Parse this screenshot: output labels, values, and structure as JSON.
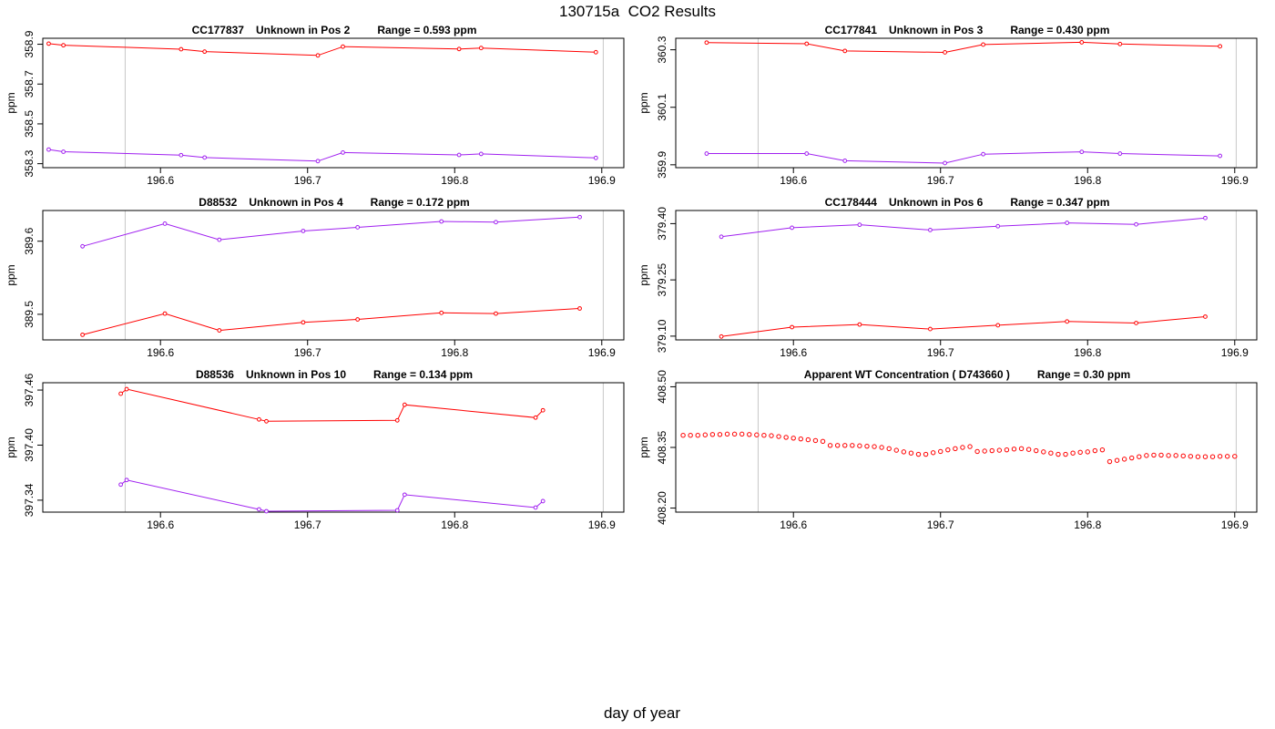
{
  "figure": {
    "title": "130715a  CO2 Results",
    "xlabel": "day of year"
  },
  "colors": {
    "red": "#ff0000",
    "purple": "#a020f0",
    "guide": "#c8c8c8"
  },
  "chart_data": [
    {
      "type": "line",
      "sample": "CC177837",
      "description": "Unknown in Pos 2",
      "range_text": "Range =  0.593 ppm",
      "ylabel": "ppm",
      "xlim": [
        196.52,
        196.915
      ],
      "ylim": [
        358.28,
        358.93
      ],
      "xticks": [
        196.6,
        196.7,
        196.8,
        196.9
      ],
      "yticks": [
        358.3,
        358.5,
        358.7,
        358.9
      ],
      "guides": [
        196.576,
        196.901
      ],
      "series": [
        {
          "name": "upper",
          "color": "red",
          "x": [
            196.524,
            196.534,
            196.614,
            196.63,
            196.707,
            196.724,
            196.803,
            196.818,
            196.896
          ],
          "y": [
            358.903,
            358.895,
            358.875,
            358.863,
            358.844,
            358.888,
            358.876,
            358.881,
            358.86
          ]
        },
        {
          "name": "lower",
          "color": "purple",
          "x": [
            196.524,
            196.534,
            196.614,
            196.63,
            196.707,
            196.724,
            196.803,
            196.818,
            196.896
          ],
          "y": [
            358.371,
            358.36,
            358.343,
            358.331,
            358.313,
            358.356,
            358.344,
            358.349,
            358.329
          ]
        }
      ]
    },
    {
      "type": "line",
      "sample": "CC177841",
      "description": "Unknown in Pos 3",
      "range_text": "Range =  0.430 ppm",
      "ylabel": "ppm",
      "xlim": [
        196.52,
        196.915
      ],
      "ylim": [
        359.89,
        360.34
      ],
      "xticks": [
        196.6,
        196.7,
        196.8,
        196.9
      ],
      "yticks": [
        359.9,
        360.1,
        360.3
      ],
      "guides": [
        196.576,
        196.901
      ],
      "series": [
        {
          "name": "upper",
          "color": "red",
          "x": [
            196.541,
            196.609,
            196.635,
            196.703,
            196.729,
            196.796,
            196.822,
            196.89
          ],
          "y": [
            360.325,
            360.321,
            360.296,
            360.291,
            360.318,
            360.326,
            360.32,
            360.312
          ]
        },
        {
          "name": "lower",
          "color": "purple",
          "x": [
            196.541,
            196.609,
            196.635,
            196.703,
            196.729,
            196.796,
            196.822,
            196.89
          ],
          "y": [
            359.939,
            359.939,
            359.914,
            359.906,
            359.937,
            359.945,
            359.939,
            359.931
          ]
        }
      ]
    },
    {
      "type": "line",
      "sample": "D88532",
      "description": "Unknown in Pos 4",
      "range_text": "Range =  0.172 ppm",
      "ylabel": "ppm",
      "xlim": [
        196.52,
        196.915
      ],
      "ylim": [
        389.465,
        389.642
      ],
      "xticks": [
        196.6,
        196.7,
        196.8,
        196.9
      ],
      "yticks": [
        389.5,
        389.6
      ],
      "guides": [
        196.576,
        196.901
      ],
      "series": [
        {
          "name": "upper",
          "color": "purple",
          "x": [
            196.547,
            196.603,
            196.64,
            196.697,
            196.734,
            196.791,
            196.828,
            196.885
          ],
          "y": [
            389.593,
            389.624,
            389.602,
            389.614,
            389.619,
            389.627,
            389.626,
            389.633
          ]
        },
        {
          "name": "lower",
          "color": "red",
          "x": [
            196.547,
            196.603,
            196.64,
            196.697,
            196.734,
            196.791,
            196.828,
            196.885
          ],
          "y": [
            389.472,
            389.501,
            389.478,
            389.489,
            389.493,
            389.502,
            389.501,
            389.508
          ]
        }
      ]
    },
    {
      "type": "line",
      "sample": "CC178444",
      "description": "Unknown in Pos 6",
      "range_text": "Range =  0.347 ppm",
      "ylabel": "ppm",
      "xlim": [
        196.52,
        196.915
      ],
      "ylim": [
        379.09,
        379.435
      ],
      "xticks": [
        196.6,
        196.7,
        196.8,
        196.9
      ],
      "yticks": [
        379.1,
        379.25,
        379.4
      ],
      "guides": [
        196.576,
        196.901
      ],
      "series": [
        {
          "name": "upper",
          "color": "purple",
          "x": [
            196.551,
            196.599,
            196.645,
            196.693,
            196.739,
            196.786,
            196.833,
            196.88
          ],
          "y": [
            379.365,
            379.389,
            379.397,
            379.383,
            379.393,
            379.402,
            379.398,
            379.415
          ]
        },
        {
          "name": "lower",
          "color": "red",
          "x": [
            196.551,
            196.599,
            196.645,
            196.693,
            196.739,
            196.786,
            196.833,
            196.88
          ],
          "y": [
            379.099,
            379.124,
            379.131,
            379.119,
            379.129,
            379.139,
            379.135,
            379.152
          ]
        }
      ]
    },
    {
      "type": "line",
      "sample": "D88536",
      "description": "Unknown in Pos 10",
      "range_text": "Range =  0.134 ppm",
      "ylabel": "ppm",
      "xlim": [
        196.52,
        196.915
      ],
      "ylim": [
        397.327,
        397.468
      ],
      "xticks": [
        196.6,
        196.7,
        196.8,
        196.9
      ],
      "yticks": [
        397.34,
        397.4,
        397.46
      ],
      "guides": [
        196.576,
        196.901
      ],
      "series": [
        {
          "name": "upper",
          "color": "red",
          "x": [
            196.573,
            196.577,
            196.667,
            196.672,
            196.761,
            196.766,
            196.855,
            196.86
          ],
          "y": [
            397.456,
            397.461,
            397.428,
            397.426,
            397.427,
            397.444,
            397.43,
            397.438
          ]
        },
        {
          "name": "lower",
          "color": "purple",
          "x": [
            196.573,
            196.577,
            196.667,
            196.672,
            196.761,
            196.766,
            196.855,
            196.86
          ],
          "y": [
            397.357,
            397.362,
            397.33,
            397.328,
            397.329,
            397.346,
            397.332,
            397.339
          ]
        }
      ]
    },
    {
      "type": "scatter",
      "title_text": "Apparent WT Concentration ( D743660 )",
      "range_text": "Range = 0.30 ppm",
      "ylabel": "ppm",
      "xlim": [
        196.52,
        196.915
      ],
      "ylim": [
        408.19,
        408.51
      ],
      "xticks": [
        196.6,
        196.7,
        196.8,
        196.9
      ],
      "yticks": [
        408.2,
        408.35,
        408.5
      ],
      "guides": [
        196.576,
        196.901
      ],
      "series": [
        {
          "name": "WT",
          "color": "red",
          "x": [
            196.525,
            196.53,
            196.535,
            196.54,
            196.545,
            196.55,
            196.555,
            196.56,
            196.565,
            196.57,
            196.575,
            196.58,
            196.585,
            196.59,
            196.595,
            196.6,
            196.605,
            196.61,
            196.615,
            196.62,
            196.625,
            196.63,
            196.635,
            196.64,
            196.645,
            196.65,
            196.655,
            196.66,
            196.665,
            196.67,
            196.675,
            196.68,
            196.685,
            196.69,
            196.695,
            196.7,
            196.705,
            196.71,
            196.715,
            196.72,
            196.725,
            196.73,
            196.735,
            196.74,
            196.745,
            196.75,
            196.755,
            196.76,
            196.765,
            196.77,
            196.775,
            196.78,
            196.785,
            196.79,
            196.795,
            196.8,
            196.805,
            196.81,
            196.815,
            196.82,
            196.825,
            196.83,
            196.835,
            196.84,
            196.845,
            196.85,
            196.855,
            196.86,
            196.865,
            196.87,
            196.875,
            196.88,
            196.885,
            196.89,
            196.895,
            196.9
          ],
          "y": [
            408.38,
            408.38,
            408.38,
            408.381,
            408.382,
            408.382,
            408.383,
            408.383,
            408.383,
            408.382,
            408.381,
            408.38,
            408.379,
            408.377,
            408.375,
            408.373,
            408.371,
            408.369,
            408.367,
            408.365,
            408.355,
            408.355,
            408.355,
            408.355,
            408.354,
            408.353,
            408.352,
            408.35,
            408.347,
            408.343,
            408.339,
            408.336,
            408.333,
            408.333,
            408.337,
            408.34,
            408.344,
            408.347,
            408.35,
            408.352,
            408.34,
            408.341,
            408.342,
            408.343,
            408.344,
            408.346,
            408.347,
            408.345,
            408.342,
            408.339,
            408.336,
            408.333,
            408.333,
            408.336,
            408.338,
            408.339,
            408.342,
            408.344,
            408.315,
            408.318,
            408.321,
            408.324,
            408.327,
            408.33,
            408.331,
            408.331,
            408.33,
            408.33,
            408.329,
            408.328,
            408.327,
            408.327,
            408.327,
            408.328,
            408.328,
            408.328
          ]
        }
      ]
    }
  ]
}
